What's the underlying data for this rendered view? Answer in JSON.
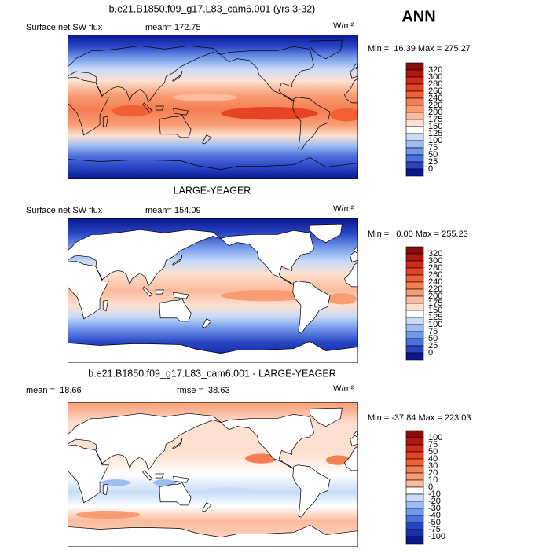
{
  "header": {
    "label": "ANN"
  },
  "panels": [
    {
      "title": "b.e21.B1850.f09_g17.L83_cam6.001 (yrs 3-32)",
      "left_label": "Surface net SW flux",
      "mean": "mean= 172.75",
      "units": "W/m²",
      "minmax": "Min =  16.39 Max = 275.27",
      "colorbar": {
        "labels": [
          320,
          300,
          280,
          260,
          240,
          220,
          200,
          175,
          150,
          125,
          100,
          75,
          50,
          25,
          0
        ],
        "colors": [
          "#8b0a0a",
          "#b3160e",
          "#d02a18",
          "#e44422",
          "#f06034",
          "#f57e52",
          "#f89c74",
          "#fbbb9c",
          "#fde0d0",
          "#ffffff",
          "#c8dcf8",
          "#9cbcf2",
          "#7298ea",
          "#4c70dc",
          "#2844c4",
          "#0a1890"
        ]
      }
    },
    {
      "title": "LARGE-YEAGER",
      "left_label": "Surface net SW flux",
      "mean": "mean= 154.09",
      "units": "W/m²",
      "minmax": "Min =   0.00 Max = 255.23",
      "colorbar": {
        "labels": [
          320,
          300,
          280,
          260,
          240,
          220,
          200,
          175,
          150,
          125,
          100,
          75,
          50,
          25,
          0
        ],
        "colors": [
          "#8b0a0a",
          "#b3160e",
          "#d02a18",
          "#e44422",
          "#f06034",
          "#f57e52",
          "#f89c74",
          "#fbbb9c",
          "#fde0d0",
          "#ffffff",
          "#c8dcf8",
          "#9cbcf2",
          "#7298ea",
          "#4c70dc",
          "#2844c4",
          "#0a1890"
        ]
      }
    },
    {
      "title": "b.e21.B1850.f09_g17.L83_cam6.001 - LARGE-YEAGER",
      "mean": "mean =  18.66",
      "rmse": "rmse =  38.63",
      "units": "W/m²",
      "minmax": "Min = -37.84 Max = 223.03",
      "colorbar": {
        "labels": [
          100,
          75,
          50,
          40,
          30,
          20,
          10,
          0,
          -10,
          -20,
          -30,
          -40,
          -50,
          -75,
          -100
        ],
        "colors": [
          "#8b0a0a",
          "#b3160e",
          "#d02a18",
          "#e44422",
          "#f06034",
          "#f57e52",
          "#f89c74",
          "#fbbb9c",
          "#ffffff",
          "#c8dcf8",
          "#9cbcf2",
          "#7298ea",
          "#4c70dc",
          "#2844c4",
          "#1830b0",
          "#0a1890"
        ]
      }
    }
  ]
}
